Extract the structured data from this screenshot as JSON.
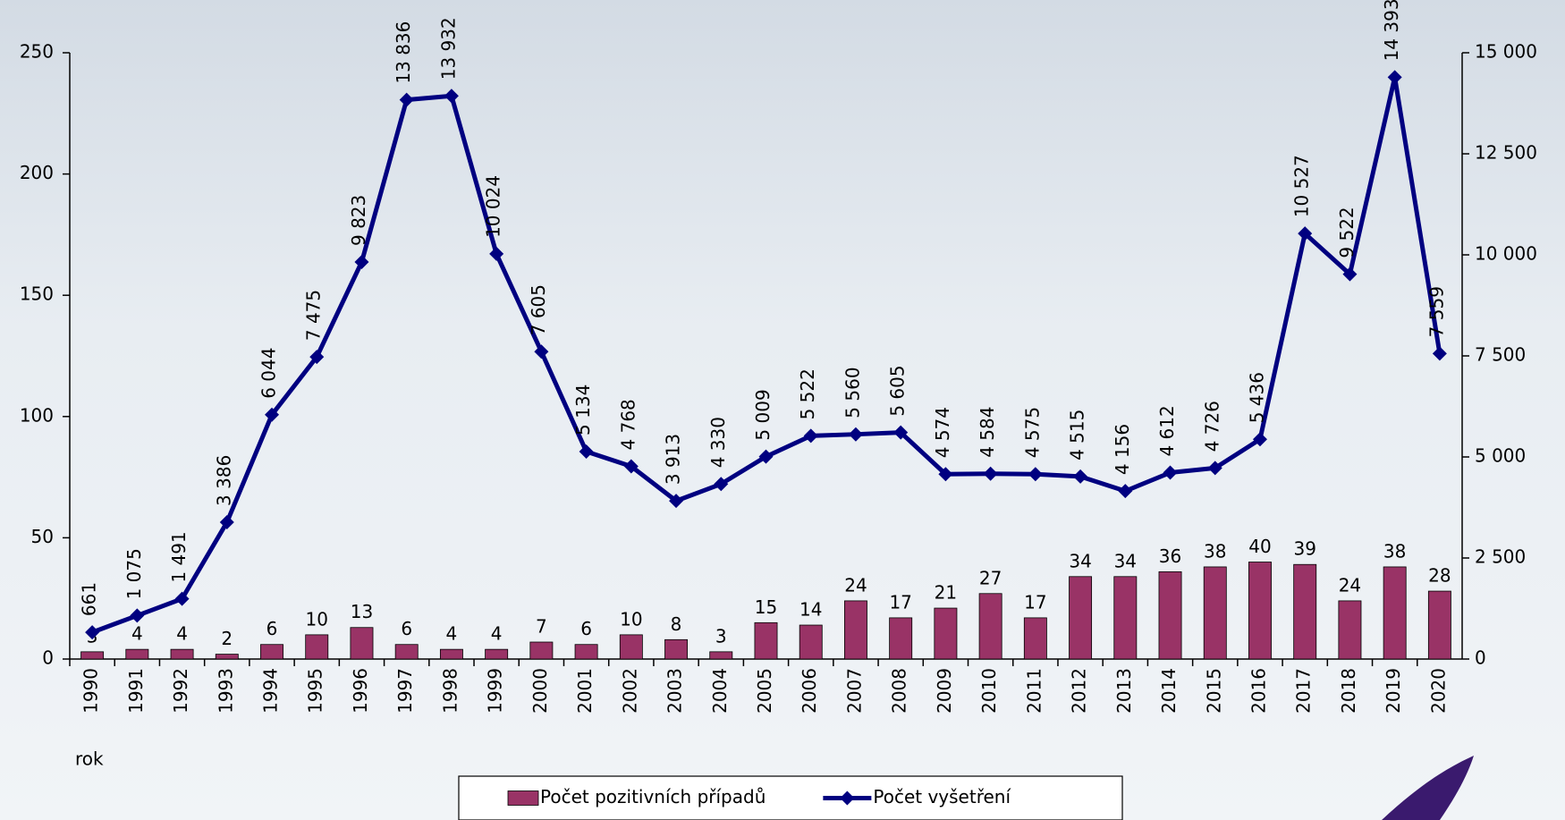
{
  "chart_data": {
    "type": "combo",
    "x_label": "rok",
    "categories": [
      "1990",
      "1991",
      "1992",
      "1993",
      "1994",
      "1995",
      "1996",
      "1997",
      "1998",
      "1999",
      "2000",
      "2001",
      "2002",
      "2003",
      "2004",
      "2005",
      "2006",
      "2007",
      "2008",
      "2009",
      "2010",
      "2011",
      "2012",
      "2013",
      "2014",
      "2015",
      "2016",
      "2017",
      "2018",
      "2019",
      "2020"
    ],
    "series": [
      {
        "name": "Počet pozitivních případů",
        "type": "bar",
        "color": "#993366",
        "values": [
          3,
          4,
          4,
          2,
          6,
          10,
          13,
          6,
          4,
          4,
          7,
          6,
          10,
          8,
          3,
          15,
          14,
          24,
          17,
          21,
          27,
          17,
          34,
          34,
          36,
          38,
          40,
          39,
          24,
          38,
          28
        ]
      },
      {
        "name": "Počet vyšetření",
        "type": "line",
        "axis": "y2",
        "color": "#000080",
        "values": [
          661,
          1075,
          1491,
          3386,
          6044,
          7475,
          9823,
          13836,
          13932,
          10024,
          7605,
          5134,
          4768,
          3913,
          4330,
          5009,
          5522,
          5560,
          5605,
          4574,
          4584,
          4575,
          4515,
          4156,
          4612,
          4726,
          5436,
          10527,
          9522,
          14393,
          7559
        ],
        "value_labels": [
          "661",
          "1 075",
          "1 491",
          "3 386",
          "6 044",
          "7 475",
          "9 823",
          "13 836",
          "13 932",
          "10 024",
          "7 605",
          "5 134",
          "4 768",
          "3 913",
          "4 330",
          "5 009",
          "5 522",
          "5 560",
          "5 605",
          "4 574",
          "4 584",
          "4 575",
          "4 515",
          "4 156",
          "4 612",
          "4 726",
          "5 436",
          "10 527",
          "9 522",
          "14 393",
          "7 559"
        ]
      }
    ],
    "ylim": [
      0,
      250
    ],
    "yticks": [
      0,
      50,
      100,
      150,
      200,
      250
    ],
    "y2lim": [
      0,
      15000
    ],
    "y2ticks": [
      0,
      {
        "value": 2500,
        "label": "2 500"
      },
      {
        "value": 5000,
        "label": "5 000"
      },
      {
        "value": 7500,
        "label": "7 500"
      },
      {
        "value": 10000,
        "label": "10 000"
      },
      {
        "value": 12500,
        "label": "12 500"
      },
      {
        "value": 15000,
        "label": "15 000"
      }
    ],
    "legend": "bottom"
  }
}
